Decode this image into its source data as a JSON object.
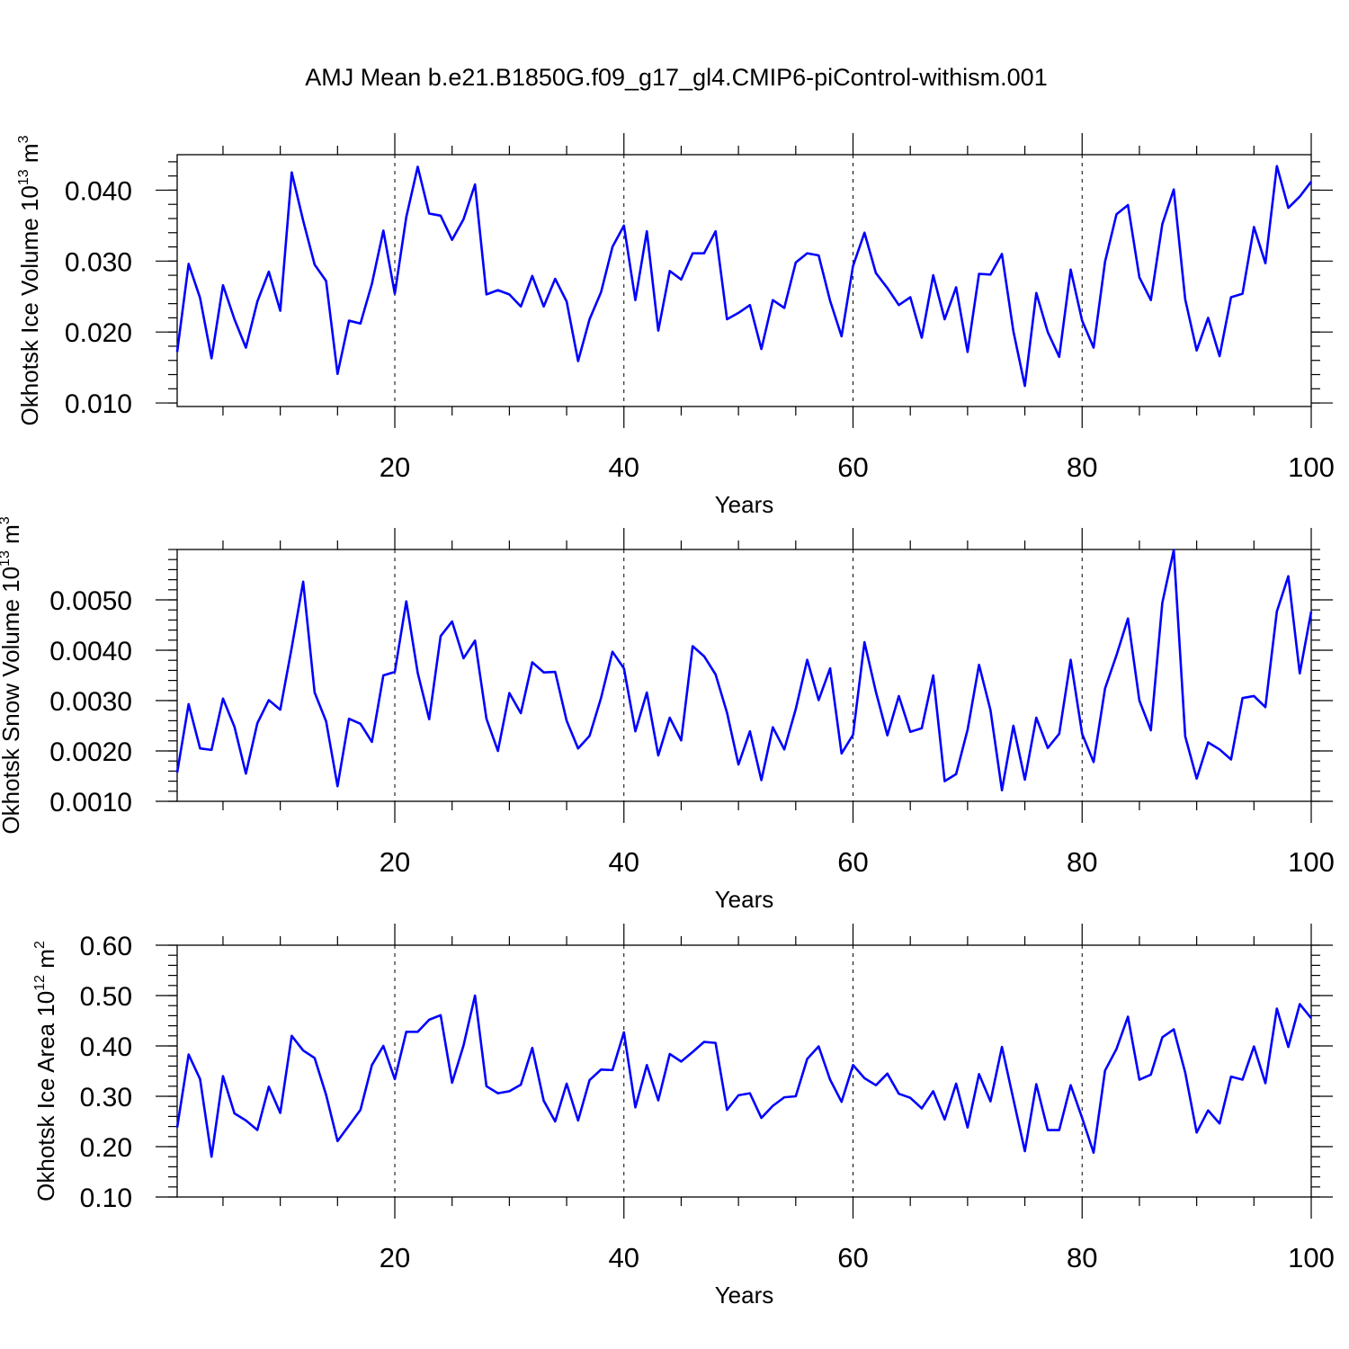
{
  "figure": {
    "title": "AMJ Mean b.e21.B1850G.f09_g17_gl4.CMIP6-piControl-withism.001",
    "line_color": "#0000ff"
  },
  "chart_data": [
    {
      "type": "line",
      "title": "",
      "xlabel": "Years",
      "ylabel": "Okhotsk Ice Volume 10",
      "ylabel_exponent": "13",
      "ylabel_unit": "m",
      "ylabel_unit_exponent": "3",
      "xlim": [
        1,
        100
      ],
      "ylim": [
        0.0095,
        0.045
      ],
      "xticks": [
        20,
        40,
        60,
        80,
        100
      ],
      "xtick_labels": [
        "20",
        "40",
        "60",
        "80",
        "100"
      ],
      "yticks": [
        0.01,
        0.02,
        0.03,
        0.04
      ],
      "ytick_labels": [
        "0.010",
        "0.020",
        "0.030",
        "0.040"
      ],
      "ytick_minor_step": 0.002,
      "vertical_dashed_lines_at": [
        20,
        40,
        60,
        80
      ],
      "series": [
        {
          "x_start": 1,
          "values": [
            0.0172,
            0.0296,
            0.0248,
            0.0163,
            0.0266,
            0.0218,
            0.0178,
            0.0243,
            0.0285,
            0.023,
            0.0425,
            0.0357,
            0.0295,
            0.0272,
            0.0141,
            0.0216,
            0.0212,
            0.0268,
            0.0343,
            0.0254,
            0.0362,
            0.0433,
            0.0367,
            0.0364,
            0.033,
            0.0359,
            0.0408,
            0.0253,
            0.0259,
            0.0253,
            0.0236,
            0.0279,
            0.0236,
            0.0275,
            0.0243,
            0.0159,
            0.0218,
            0.0256,
            0.032,
            0.035,
            0.0245,
            0.0342,
            0.0202,
            0.0286,
            0.0274,
            0.0311,
            0.0311,
            0.0342,
            0.0218,
            0.0227,
            0.0238,
            0.0176,
            0.0245,
            0.0234,
            0.0298,
            0.0311,
            0.0308,
            0.0244,
            0.0194,
            0.0293,
            0.034,
            0.0283,
            0.0262,
            0.0238,
            0.0249,
            0.0192,
            0.028,
            0.0218,
            0.0263,
            0.0172,
            0.0282,
            0.0281,
            0.031,
            0.0201,
            0.0124,
            0.0255,
            0.02,
            0.0165,
            0.0288,
            0.0216,
            0.0178,
            0.0299,
            0.0366,
            0.0379,
            0.0277,
            0.0245,
            0.0352,
            0.0401,
            0.0246,
            0.0174,
            0.022,
            0.0166,
            0.0249,
            0.0254,
            0.0348,
            0.0297,
            0.0434,
            0.0375,
            0.0391,
            0.0412
          ]
        }
      ]
    },
    {
      "type": "line",
      "title": "",
      "xlabel": "Years",
      "ylabel": "Okhotsk Snow Volume 10",
      "ylabel_exponent": "13",
      "ylabel_unit": "m",
      "ylabel_unit_exponent": "3",
      "xlim": [
        1,
        100
      ],
      "ylim": [
        0.001,
        0.006
      ],
      "xticks": [
        20,
        40,
        60,
        80,
        100
      ],
      "xtick_labels": [
        "20",
        "40",
        "60",
        "80",
        "100"
      ],
      "yticks": [
        0.001,
        0.002,
        0.003,
        0.004,
        0.005
      ],
      "ytick_labels": [
        "0.0010",
        "0.0020",
        "0.0030",
        "0.0040",
        "0.0050"
      ],
      "ytick_minor_step": 0.0002,
      "vertical_dashed_lines_at": [
        20,
        40,
        60,
        80
      ],
      "series": [
        {
          "x_start": 1,
          "values": [
            0.00157,
            0.00293,
            0.00205,
            0.00202,
            0.00304,
            0.00248,
            0.00155,
            0.00255,
            0.00301,
            0.00282,
            0.00405,
            0.00536,
            0.00316,
            0.00259,
            0.0013,
            0.00264,
            0.00254,
            0.00218,
            0.0035,
            0.00357,
            0.00497,
            0.00355,
            0.00263,
            0.00428,
            0.00457,
            0.00384,
            0.00419,
            0.00264,
            0.002,
            0.00315,
            0.00275,
            0.00376,
            0.00356,
            0.00357,
            0.0026,
            0.00205,
            0.0023,
            0.00305,
            0.00397,
            0.00364,
            0.00239,
            0.00316,
            0.00191,
            0.00266,
            0.00221,
            0.00408,
            0.00388,
            0.00352,
            0.00276,
            0.00173,
            0.00239,
            0.00142,
            0.00247,
            0.00203,
            0.00283,
            0.00381,
            0.00301,
            0.00364,
            0.00195,
            0.00232,
            0.00416,
            0.00317,
            0.00231,
            0.00309,
            0.00238,
            0.00245,
            0.0035,
            0.0014,
            0.00154,
            0.00242,
            0.00371,
            0.00281,
            0.00122,
            0.0025,
            0.00143,
            0.00266,
            0.00206,
            0.00234,
            0.00381,
            0.00234,
            0.00178,
            0.00324,
            0.0039,
            0.00463,
            0.003,
            0.00241,
            0.00494,
            0.00599,
            0.00229,
            0.00145,
            0.00217,
            0.00203,
            0.00183,
            0.00305,
            0.00309,
            0.00287,
            0.00477,
            0.00547,
            0.00354,
            0.00477
          ]
        }
      ]
    },
    {
      "type": "line",
      "title": "",
      "xlabel": "Years",
      "ylabel": "Okhotsk Ice Area 10",
      "ylabel_exponent": "12",
      "ylabel_unit": "m",
      "ylabel_unit_exponent": "2",
      "xlim": [
        1,
        100
      ],
      "ylim": [
        0.1,
        0.6
      ],
      "xticks": [
        20,
        40,
        60,
        80,
        100
      ],
      "xtick_labels": [
        "20",
        "40",
        "60",
        "80",
        "100"
      ],
      "yticks": [
        0.1,
        0.2,
        0.3,
        0.4,
        0.5,
        0.6
      ],
      "ytick_labels": [
        "0.10",
        "0.20",
        "0.30",
        "0.40",
        "0.50",
        "0.60"
      ],
      "ytick_minor_step": 0.02,
      "vertical_dashed_lines_at": [
        20,
        40,
        60,
        80
      ],
      "series": [
        {
          "x_start": 1,
          "values": [
            0.238,
            0.383,
            0.334,
            0.18,
            0.34,
            0.266,
            0.252,
            0.233,
            0.319,
            0.267,
            0.42,
            0.391,
            0.376,
            0.303,
            0.211,
            0.242,
            0.273,
            0.362,
            0.4,
            0.334,
            0.428,
            0.428,
            0.452,
            0.461,
            0.327,
            0.401,
            0.5,
            0.32,
            0.306,
            0.31,
            0.323,
            0.396,
            0.291,
            0.25,
            0.325,
            0.252,
            0.332,
            0.353,
            0.352,
            0.427,
            0.278,
            0.362,
            0.292,
            0.384,
            0.369,
            0.388,
            0.408,
            0.406,
            0.273,
            0.302,
            0.306,
            0.257,
            0.281,
            0.298,
            0.3,
            0.374,
            0.399,
            0.333,
            0.289,
            0.362,
            0.336,
            0.322,
            0.345,
            0.305,
            0.297,
            0.276,
            0.31,
            0.254,
            0.325,
            0.238,
            0.344,
            0.29,
            0.398,
            0.294,
            0.191,
            0.324,
            0.233,
            0.233,
            0.322,
            0.257,
            0.188,
            0.351,
            0.394,
            0.458,
            0.333,
            0.343,
            0.417,
            0.433,
            0.347,
            0.228,
            0.272,
            0.246,
            0.339,
            0.333,
            0.399,
            0.326,
            0.474,
            0.398,
            0.483,
            0.455
          ]
        }
      ]
    }
  ]
}
